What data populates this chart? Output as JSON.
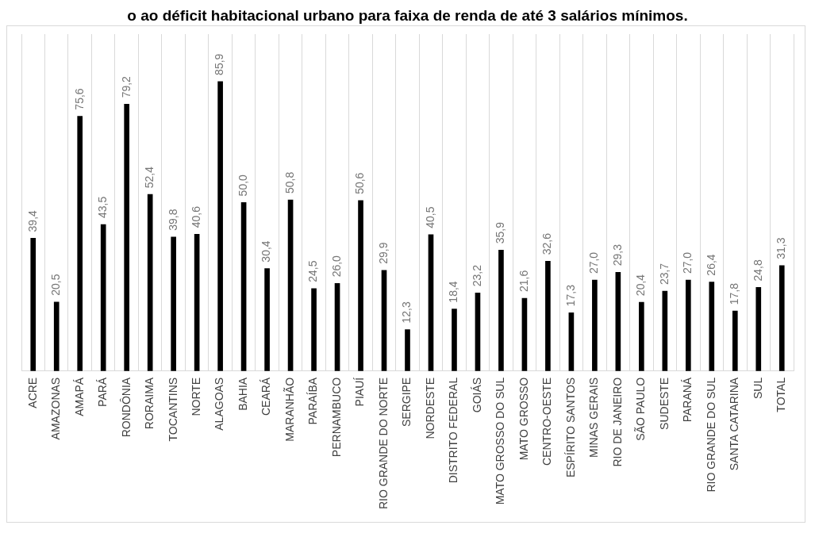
{
  "chart_data": {
    "type": "bar",
    "title": "o ao déficit habitacional urbano para faixa de renda de até 3 salários mínimos.",
    "categories": [
      "ACRE",
      "AMAZONAS",
      "AMAPÁ",
      "PARÁ",
      "RONDÔNIA",
      "RORAIMA",
      "TOCANTINS",
      "NORTE",
      "ALAGOAS",
      "BAHIA",
      "CEARÁ",
      "MARANHÃO",
      "PARAÍBA",
      "PERNAMBUCO",
      "PIAUÍ",
      "RIO GRANDE DO NORTE",
      "SERGIPE",
      "NORDESTE",
      "DISTRITO FEDERAL",
      "GOIÁS",
      "MATO GROSSO DO SUL",
      "MATO GROSSO",
      "CENTRO-OESTE",
      "ESPÍRITO SANTOS",
      "MINAS GERAIS",
      "RIO DE JANEIRO",
      "SÃO PAULO",
      "SUDESTE",
      "PARANÁ",
      "RIO GRANDE DO SUL",
      "SANTA CATARINA",
      "SUL",
      "TOTAL"
    ],
    "values": [
      39.4,
      20.5,
      75.6,
      43.5,
      79.2,
      52.4,
      39.8,
      40.6,
      85.9,
      50.0,
      30.4,
      50.8,
      24.5,
      26.0,
      50.6,
      29.9,
      12.3,
      40.5,
      18.4,
      23.2,
      35.9,
      21.6,
      32.6,
      17.3,
      27.0,
      29.3,
      20.4,
      23.7,
      27.0,
      26.4,
      17.8,
      24.8,
      31.3
    ],
    "value_labels": [
      "39,4",
      "20,5",
      "75,6",
      "43,5",
      "79,2",
      "52,4",
      "39,8",
      "40,6",
      "85,9",
      "50,0",
      "30,4",
      "50,8",
      "24,5",
      "26,0",
      "50,6",
      "29,9",
      "12,3",
      "40,5",
      "18,4",
      "23,2",
      "35,9",
      "21,6",
      "32,6",
      "17,3",
      "27,0",
      "29,3",
      "20,4",
      "23,7",
      "27,0",
      "26,4",
      "17,8",
      "24,8",
      "31,3"
    ],
    "color": "#000000",
    "grid": "x",
    "legend": false
  }
}
